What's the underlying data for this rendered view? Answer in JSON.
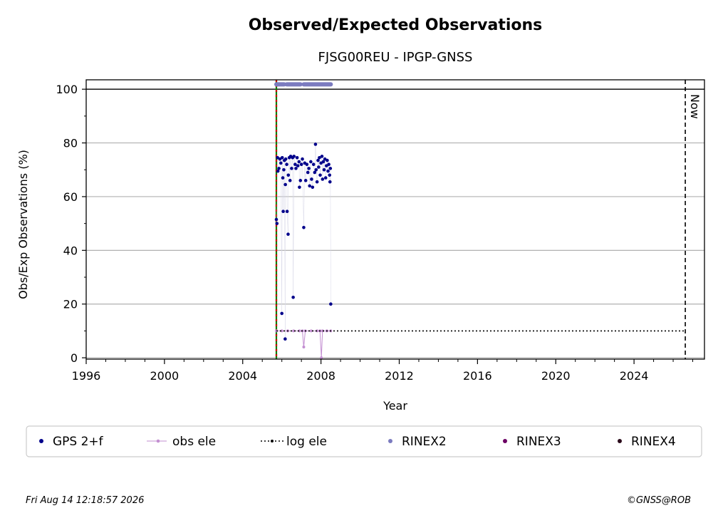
{
  "chart_data": {
    "type": "scatter",
    "title": "Observed/Expected Observations",
    "subtitle": "FJSG00REU - IPGP-GNSS",
    "xlabel": "Year",
    "ylabel": "Obs/Exp Observations (%)",
    "xlim": [
      1996,
      2027.6
    ],
    "ylim": [
      -0.5,
      103.5
    ],
    "x_ticks": [
      1996,
      2000,
      2004,
      2008,
      2012,
      2016,
      2020,
      2024
    ],
    "y_ticks": [
      0,
      20,
      40,
      60,
      80,
      100
    ],
    "grid": "horizontal",
    "now_line": {
      "x": 2026.62,
      "label": "Now"
    },
    "reference_lines": [
      {
        "x": 2005.72,
        "colors": [
          "#008000",
          "#cc0000"
        ],
        "style": "dashed"
      }
    ],
    "series": [
      {
        "name": "GPS 2+f",
        "color": "#00008b",
        "marker": "dot",
        "points": [
          [
            2005.72,
            51.5
          ],
          [
            2005.75,
            50.0
          ],
          [
            2005.78,
            74.5
          ],
          [
            2005.8,
            69.5
          ],
          [
            2005.85,
            70.5
          ],
          [
            2005.9,
            74.0
          ],
          [
            2005.95,
            72.5
          ],
          [
            2006.0,
            16.5
          ],
          [
            2006.02,
            74.5
          ],
          [
            2006.05,
            67.0
          ],
          [
            2006.07,
            54.5
          ],
          [
            2006.1,
            70.0
          ],
          [
            2006.13,
            73.5
          ],
          [
            2006.17,
            7.0
          ],
          [
            2006.18,
            64.5
          ],
          [
            2006.2,
            74.0
          ],
          [
            2006.25,
            72.0
          ],
          [
            2006.27,
            54.5
          ],
          [
            2006.32,
            46.0
          ],
          [
            2006.33,
            68.0
          ],
          [
            2006.38,
            74.5
          ],
          [
            2006.42,
            66.0
          ],
          [
            2006.45,
            75.0
          ],
          [
            2006.5,
            70.5
          ],
          [
            2006.55,
            74.5
          ],
          [
            2006.58,
            22.5
          ],
          [
            2006.62,
            75.0
          ],
          [
            2006.68,
            72.0
          ],
          [
            2006.72,
            70.5
          ],
          [
            2006.78,
            74.5
          ],
          [
            2006.82,
            71.5
          ],
          [
            2006.88,
            73.0
          ],
          [
            2006.9,
            63.5
          ],
          [
            2006.95,
            66.0
          ],
          [
            2007.0,
            72.0
          ],
          [
            2007.05,
            74.0
          ],
          [
            2007.12,
            48.5
          ],
          [
            2007.17,
            72.5
          ],
          [
            2007.22,
            66.0
          ],
          [
            2007.28,
            72.0
          ],
          [
            2007.33,
            69.0
          ],
          [
            2007.38,
            70.5
          ],
          [
            2007.42,
            64.0
          ],
          [
            2007.48,
            73.0
          ],
          [
            2007.52,
            66.5
          ],
          [
            2007.57,
            63.5
          ],
          [
            2007.62,
            72.0
          ],
          [
            2007.68,
            69.0
          ],
          [
            2007.72,
            79.5
          ],
          [
            2007.75,
            70.0
          ],
          [
            2007.8,
            65.5
          ],
          [
            2007.85,
            73.5
          ],
          [
            2007.88,
            71.0
          ],
          [
            2007.92,
            74.5
          ],
          [
            2007.96,
            68.0
          ],
          [
            2008.0,
            72.5
          ],
          [
            2008.05,
            75.0
          ],
          [
            2008.08,
            66.5
          ],
          [
            2008.12,
            73.0
          ],
          [
            2008.16,
            70.0
          ],
          [
            2008.2,
            74.0
          ],
          [
            2008.24,
            67.0
          ],
          [
            2008.28,
            71.5
          ],
          [
            2008.32,
            73.5
          ],
          [
            2008.36,
            69.5
          ],
          [
            2008.4,
            72.0
          ],
          [
            2008.44,
            68.0
          ],
          [
            2008.46,
            65.5
          ],
          [
            2008.48,
            70.5
          ],
          [
            2008.5,
            20.0
          ]
        ]
      },
      {
        "name": "obs ele",
        "color": "#c38fd1",
        "marker": "line-dot",
        "points": [
          [
            2005.72,
            10
          ],
          [
            2006.0,
            10
          ],
          [
            2006.3,
            10
          ],
          [
            2006.6,
            10
          ],
          [
            2006.9,
            10
          ],
          [
            2007.05,
            10
          ],
          [
            2007.12,
            4
          ],
          [
            2007.2,
            10
          ],
          [
            2007.5,
            10
          ],
          [
            2007.8,
            10
          ],
          [
            2007.95,
            10
          ],
          [
            2008.02,
            0
          ],
          [
            2008.08,
            10
          ],
          [
            2008.3,
            10
          ],
          [
            2008.5,
            10
          ]
        ]
      },
      {
        "name": "log ele",
        "color": "#000000",
        "marker": "dotted-line",
        "points": [
          [
            2005.72,
            10
          ],
          [
            2026.62,
            10
          ]
        ]
      },
      {
        "name": "RINEX2",
        "color": "#7b7bbf",
        "marker": "bar",
        "segments": [
          [
            2005.72,
            2006.12
          ],
          [
            2006.25,
            2006.95
          ],
          [
            2007.12,
            2008.5
          ]
        ],
        "y": 101.8
      },
      {
        "name": "RINEX3",
        "color": "#6b0063",
        "marker": "dot",
        "points": []
      },
      {
        "name": "RINEX4",
        "color": "#2a0a1a",
        "marker": "dot",
        "points": []
      }
    ],
    "legend_position": "bottom"
  },
  "footer": {
    "date": "Fri Aug 14 12:18:57 2026",
    "credit": "©GNSS@ROB"
  }
}
